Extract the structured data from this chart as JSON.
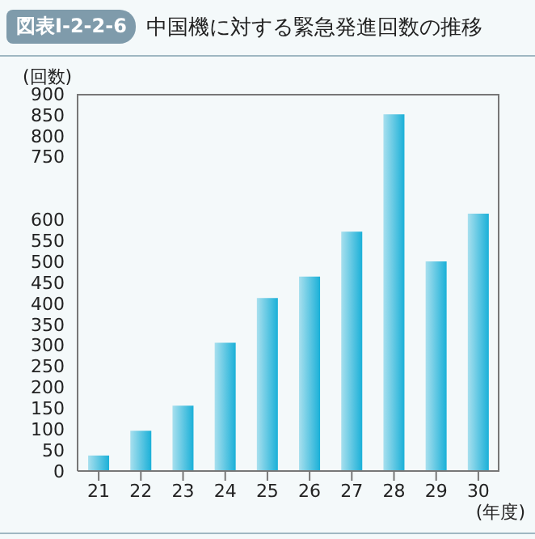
{
  "chart_data": {
    "type": "bar",
    "title": "中国機に対する緊急発進回数の推移",
    "annotations": [
      "図表Ⅰ-2-2-6"
    ],
    "ylabel": "(回数)",
    "xlabel": "(年度)",
    "categories": [
      "21",
      "22",
      "23",
      "24",
      "25",
      "26",
      "27",
      "28",
      "29",
      "30"
    ],
    "values": [
      37,
      96,
      156,
      306,
      413,
      464,
      571,
      851,
      500,
      614
    ],
    "color": "#1ab0d8",
    "ylim": [
      0,
      900
    ],
    "yticks": [
      0,
      50,
      100,
      150,
      200,
      250,
      300,
      350,
      400,
      450,
      500,
      550,
      600,
      750,
      800,
      850,
      900
    ]
  }
}
